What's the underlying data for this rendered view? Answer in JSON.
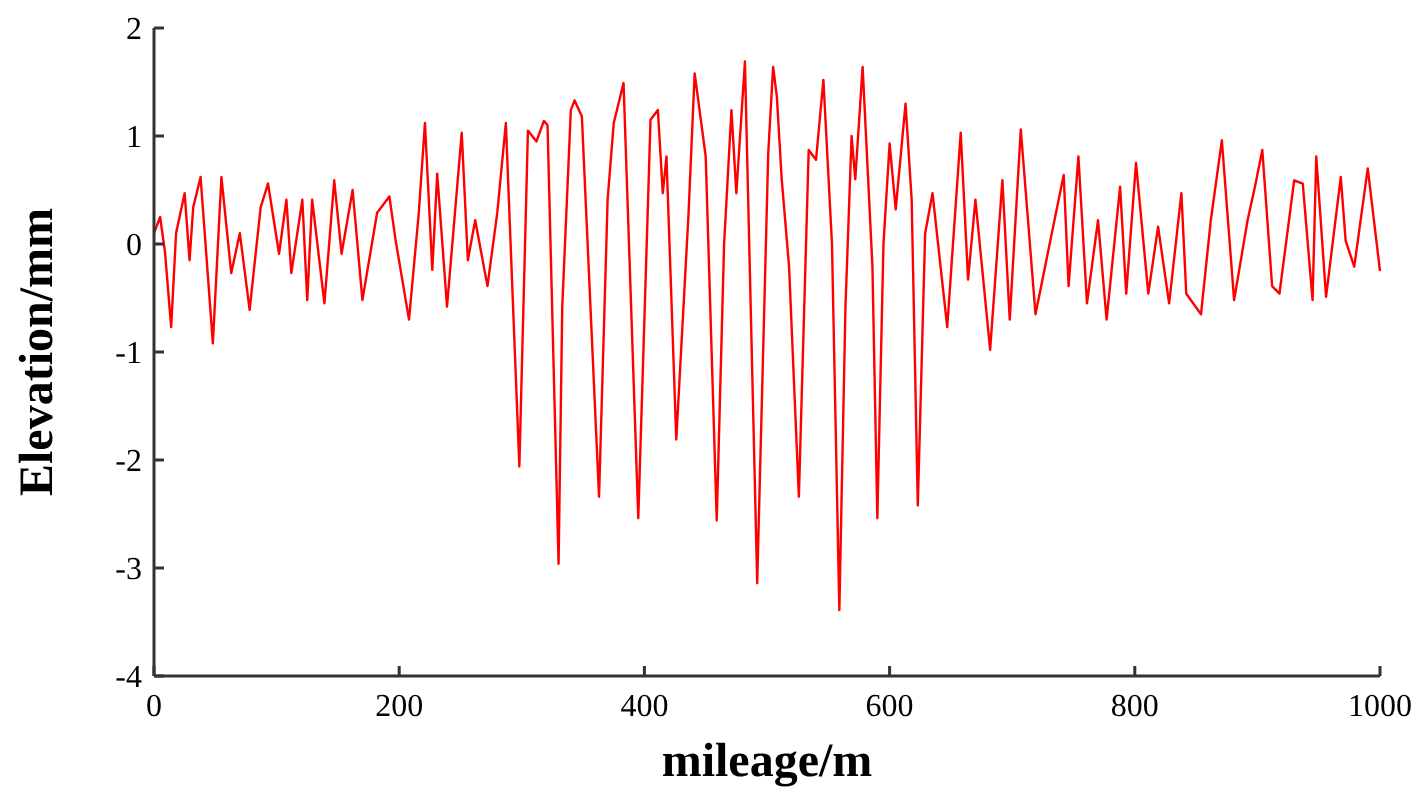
{
  "chart_data": {
    "type": "line",
    "xlabel": "mileage/m",
    "ylabel": "Elevation/mm",
    "xlim": [
      0,
      1000
    ],
    "ylim": [
      -4,
      2
    ],
    "xticks": [
      0,
      200,
      400,
      600,
      800,
      1000
    ],
    "yticks": [
      -4,
      -3,
      -2,
      -1,
      0,
      1,
      2
    ],
    "grid": false,
    "marker": "none",
    "line_style": "solid",
    "series": [
      {
        "color": "#ff0000",
        "x": [
          0,
          5,
          9,
          14,
          18,
          25,
          29,
          32,
          38,
          48,
          55,
          63,
          70,
          78,
          87,
          93,
          102,
          108,
          112,
          121,
          125,
          129,
          139,
          147,
          153,
          162,
          170,
          182,
          192,
          197,
          208,
          216,
          221,
          227,
          231,
          239,
          251,
          256,
          262,
          272,
          280,
          287,
          298,
          305,
          312,
          318,
          321,
          330,
          333,
          340,
          343,
          349,
          363,
          370,
          375,
          383,
          395,
          405,
          411,
          415,
          418,
          426,
          436,
          441,
          450,
          459,
          465,
          471,
          475,
          482,
          492,
          501,
          505,
          508,
          512,
          518,
          526,
          534,
          540,
          546,
          553,
          559,
          564,
          569,
          572,
          578,
          586,
          590,
          595,
          600,
          605,
          613,
          618,
          623,
          629,
          635,
          647,
          658,
          664,
          670,
          682,
          692,
          698,
          707,
          719,
          730,
          742,
          746,
          754,
          761,
          770,
          777,
          788,
          793,
          801,
          811,
          819,
          828,
          838,
          842,
          854,
          862,
          871,
          881,
          892,
          898,
          904,
          912,
          918,
          930,
          937,
          945,
          948,
          956,
          968,
          972,
          979,
          990,
          1000
        ],
        "values": [
          0.1,
          0.25,
          -0.08,
          -0.77,
          0.1,
          0.47,
          -0.15,
          0.34,
          0.62,
          -0.92,
          0.62,
          -0.27,
          0.1,
          -0.61,
          0.34,
          0.56,
          -0.09,
          0.41,
          -0.27,
          0.41,
          -0.52,
          0.41,
          -0.55,
          0.59,
          -0.09,
          0.5,
          -0.52,
          0.29,
          0.44,
          0.04,
          -0.7,
          0.29,
          1.12,
          -0.24,
          0.65,
          -0.58,
          1.03,
          -0.15,
          0.22,
          -0.39,
          0.29,
          1.12,
          -2.06,
          1.05,
          0.95,
          1.14,
          1.1,
          -2.96,
          -0.58,
          1.24,
          1.33,
          1.18,
          -2.34,
          0.41,
          1.12,
          1.49,
          -2.54,
          1.15,
          1.24,
          0.47,
          0.81,
          -1.81,
          0.28,
          1.58,
          0.81,
          -2.56,
          0.0,
          1.24,
          0.47,
          1.69,
          -3.14,
          0.84,
          1.64,
          1.37,
          0.6,
          -0.21,
          -2.34,
          0.87,
          0.78,
          1.52,
          0.0,
          -3.39,
          -0.58,
          1.0,
          0.6,
          1.64,
          -0.21,
          -2.54,
          0.0,
          0.93,
          0.32,
          1.3,
          0.41,
          -2.42,
          0.1,
          0.47,
          -0.77,
          1.03,
          -0.33,
          0.41,
          -0.98,
          0.59,
          -0.7,
          1.06,
          -0.65,
          -0.03,
          0.64,
          -0.39,
          0.81,
          -0.55,
          0.22,
          -0.7,
          0.53,
          -0.46,
          0.75,
          -0.46,
          0.16,
          -0.55,
          0.47,
          -0.46,
          -0.65,
          0.22,
          0.96,
          -0.52,
          0.22,
          0.53,
          0.87,
          -0.39,
          -0.46,
          0.59,
          0.56,
          -0.52,
          0.81,
          -0.49,
          0.62,
          0.03,
          -0.21,
          0.7,
          -0.25
        ]
      }
    ]
  }
}
